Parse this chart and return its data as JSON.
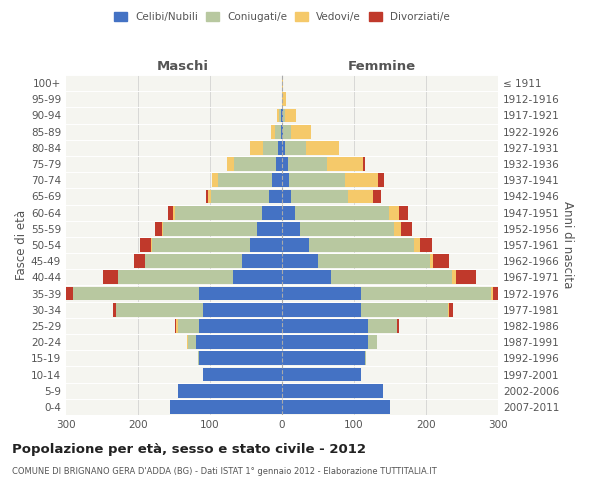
{
  "age_groups": [
    "0-4",
    "5-9",
    "10-14",
    "15-19",
    "20-24",
    "25-29",
    "30-34",
    "35-39",
    "40-44",
    "45-49",
    "50-54",
    "55-59",
    "60-64",
    "65-69",
    "70-74",
    "75-79",
    "80-84",
    "85-89",
    "90-94",
    "95-99",
    "100+"
  ],
  "birth_years": [
    "2007-2011",
    "2002-2006",
    "1997-2001",
    "1992-1996",
    "1987-1991",
    "1982-1986",
    "1977-1981",
    "1972-1976",
    "1967-1971",
    "1962-1966",
    "1957-1961",
    "1952-1956",
    "1947-1951",
    "1942-1946",
    "1937-1941",
    "1932-1936",
    "1927-1931",
    "1922-1926",
    "1917-1921",
    "1912-1916",
    "≤ 1911"
  ],
  "colors": {
    "celibi": "#4472C4",
    "coniugati": "#B8C8A0",
    "vedovi": "#F5C96A",
    "divorziati": "#C0392B"
  },
  "males": {
    "celibi": [
      155,
      145,
      110,
      115,
      120,
      115,
      110,
      115,
      68,
      55,
      45,
      35,
      28,
      18,
      14,
      8,
      5,
      2,
      1,
      0,
      0
    ],
    "coniugati": [
      0,
      0,
      0,
      2,
      10,
      30,
      120,
      175,
      160,
      135,
      135,
      130,
      120,
      80,
      75,
      58,
      22,
      8,
      3,
      0,
      0
    ],
    "vedovi": [
      0,
      0,
      0,
      0,
      2,
      2,
      0,
      0,
      0,
      0,
      2,
      2,
      3,
      5,
      8,
      10,
      18,
      5,
      3,
      0,
      0
    ],
    "divorziati": [
      0,
      0,
      0,
      0,
      0,
      2,
      5,
      18,
      20,
      15,
      15,
      10,
      8,
      2,
      0,
      0,
      0,
      0,
      0,
      0,
      0
    ]
  },
  "females": {
    "celibi": [
      150,
      140,
      110,
      115,
      120,
      120,
      110,
      110,
      68,
      50,
      38,
      25,
      18,
      12,
      10,
      8,
      4,
      2,
      1,
      0,
      0
    ],
    "coniugati": [
      0,
      0,
      0,
      2,
      12,
      40,
      120,
      180,
      168,
      155,
      145,
      130,
      130,
      80,
      78,
      55,
      30,
      10,
      3,
      0,
      0
    ],
    "vedovi": [
      0,
      0,
      0,
      0,
      0,
      0,
      2,
      3,
      5,
      5,
      8,
      10,
      15,
      35,
      45,
      50,
      45,
      28,
      15,
      5,
      2
    ],
    "divorziati": [
      0,
      0,
      0,
      0,
      0,
      2,
      5,
      22,
      28,
      22,
      18,
      15,
      12,
      10,
      8,
      2,
      0,
      0,
      0,
      0,
      0
    ]
  },
  "xlim": 300,
  "title": "Popolazione per età, sesso e stato civile - 2012",
  "subtitle": "COMUNE DI BRIGNANO GERA D'ADDA (BG) - Dati ISTAT 1° gennaio 2012 - Elaborazione TUTTITALIA.IT",
  "ylabel_left": "Fasce di età",
  "ylabel_right": "Anni di nascita",
  "xlabel_left": "Maschi",
  "xlabel_right": "Femmine",
  "bg_color": "#f5f5f0",
  "grid_color": "#cccccc"
}
